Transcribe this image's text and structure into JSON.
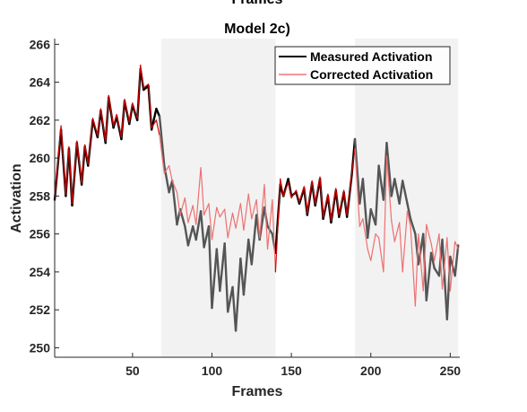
{
  "chart_data": {
    "type": "line",
    "top_label": "Frames",
    "title": "Model 2c)",
    "xlabel": "Frames",
    "ylabel": "Activation",
    "xlim": [
      1,
      256
    ],
    "ylim": [
      249.5,
      266.3
    ],
    "xticks": [
      50,
      100,
      150,
      200,
      250
    ],
    "yticks": [
      250,
      252,
      254,
      256,
      258,
      260,
      262,
      264,
      266
    ],
    "shaded_regions": [
      [
        68,
        140
      ],
      [
        190,
        255
      ]
    ],
    "legend_position": "top-right",
    "grid": false,
    "colors": {
      "measured": "#000000",
      "measured_shaded": "#555555",
      "corrected": "#cc0000",
      "corrected_shaded": "#ee7070",
      "shade": "#f2f2f2"
    },
    "series": [
      {
        "name": "Measured Activation",
        "x": [
          1,
          5,
          8,
          10,
          12,
          15,
          18,
          20,
          22,
          25,
          28,
          30,
          33,
          35,
          38,
          40,
          43,
          45,
          48,
          50,
          53,
          55,
          57,
          60,
          62,
          65,
          67,
          70,
          73,
          75,
          78,
          80,
          83,
          85,
          88,
          90,
          93,
          95,
          98,
          100,
          103,
          105,
          108,
          110,
          113,
          115,
          118,
          120,
          123,
          125,
          128,
          130,
          133,
          135,
          138,
          140,
          143,
          145,
          148,
          150,
          153,
          155,
          158,
          160,
          163,
          165,
          168,
          170,
          173,
          175,
          178,
          180,
          183,
          185,
          188,
          190,
          193,
          195,
          198,
          200,
          203,
          205,
          208,
          210,
          213,
          215,
          218,
          220,
          223,
          225,
          228,
          230,
          233,
          235,
          238,
          240,
          243,
          245,
          248,
          250,
          253,
          255
        ],
        "values": [
          257.8,
          261.5,
          258.0,
          260.5,
          257.5,
          260.8,
          258.6,
          260.6,
          259.6,
          262.0,
          261.1,
          262.5,
          260.8,
          263.2,
          261.6,
          262.2,
          261.0,
          263.0,
          261.8,
          262.8,
          262.0,
          264.7,
          263.6,
          263.8,
          261.5,
          262.6,
          262.2,
          259.6,
          258.2,
          258.8,
          256.5,
          257.3,
          256.4,
          255.4,
          256.4,
          255.7,
          257.2,
          255.3,
          256.4,
          252.1,
          255.2,
          253.0,
          255.5,
          251.9,
          253.2,
          250.9,
          254.7,
          252.8,
          255.7,
          254.4,
          257.0,
          255.7,
          257.4,
          256.4,
          256.0,
          255.0,
          258.6,
          258.0,
          258.9,
          258.0,
          258.2,
          257.6,
          258.4,
          257.0,
          258.7,
          257.5,
          258.9,
          256.8,
          258.0,
          256.6,
          258.3,
          256.9,
          258.2,
          256.9,
          259.1,
          261.0,
          257.6,
          258.9,
          255.8,
          257.3,
          256.5,
          259.6,
          257.8,
          260.8,
          258.0,
          258.9,
          257.6,
          258.8,
          257.6,
          256.8,
          256.0,
          254.4,
          256.0,
          252.5,
          255.0,
          254.2,
          253.8,
          255.7,
          251.5,
          254.8,
          253.8,
          255.4
        ]
      },
      {
        "name": "Corrected Activation",
        "x": [
          1,
          5,
          8,
          10,
          12,
          15,
          18,
          20,
          22,
          25,
          28,
          30,
          33,
          35,
          38,
          40,
          43,
          45,
          48,
          50,
          53,
          55,
          57,
          60,
          62,
          65,
          67,
          70,
          73,
          75,
          78,
          80,
          83,
          85,
          88,
          90,
          93,
          95,
          98,
          100,
          103,
          105,
          108,
          110,
          113,
          115,
          118,
          120,
          123,
          125,
          128,
          130,
          133,
          135,
          138,
          140,
          143,
          145,
          148,
          150,
          153,
          155,
          158,
          160,
          163,
          165,
          168,
          170,
          173,
          175,
          178,
          180,
          183,
          185,
          188,
          190,
          193,
          195,
          198,
          200,
          203,
          205,
          208,
          210,
          213,
          215,
          218,
          220,
          223,
          225,
          228,
          230,
          233,
          235,
          238,
          240,
          243,
          245,
          248,
          250,
          253,
          255
        ],
        "values": [
          257.9,
          261.7,
          258.1,
          260.6,
          257.6,
          260.9,
          258.7,
          260.7,
          259.7,
          262.1,
          261.2,
          262.6,
          260.9,
          263.3,
          261.7,
          262.3,
          261.1,
          263.1,
          261.9,
          262.9,
          262.1,
          264.9,
          263.7,
          263.9,
          261.6,
          262.0,
          261.2,
          259.2,
          259.6,
          258.8,
          258.2,
          257.0,
          257.9,
          256.6,
          257.5,
          256.5,
          259.5,
          257.0,
          257.6,
          255.7,
          257.4,
          256.9,
          257.3,
          255.8,
          257.1,
          256.3,
          257.6,
          256.2,
          258.1,
          256.8,
          257.8,
          255.8,
          258.6,
          255.2,
          257.8,
          254.0,
          258.9,
          258.0,
          258.7,
          257.9,
          258.3,
          257.7,
          258.5,
          257.1,
          258.8,
          257.6,
          259.0,
          256.9,
          258.1,
          256.7,
          258.4,
          257.0,
          258.3,
          257.0,
          259.2,
          260.5,
          256.4,
          256.8,
          255.2,
          254.6,
          256.0,
          255.8,
          254.0,
          260.1,
          256.7,
          255.6,
          256.6,
          254.0,
          257.2,
          256.4,
          252.2,
          256.0,
          253.0,
          256.5,
          255.5,
          254.6,
          256.0,
          253.1,
          255.8,
          253.0,
          255.6,
          255.2
        ]
      }
    ]
  }
}
